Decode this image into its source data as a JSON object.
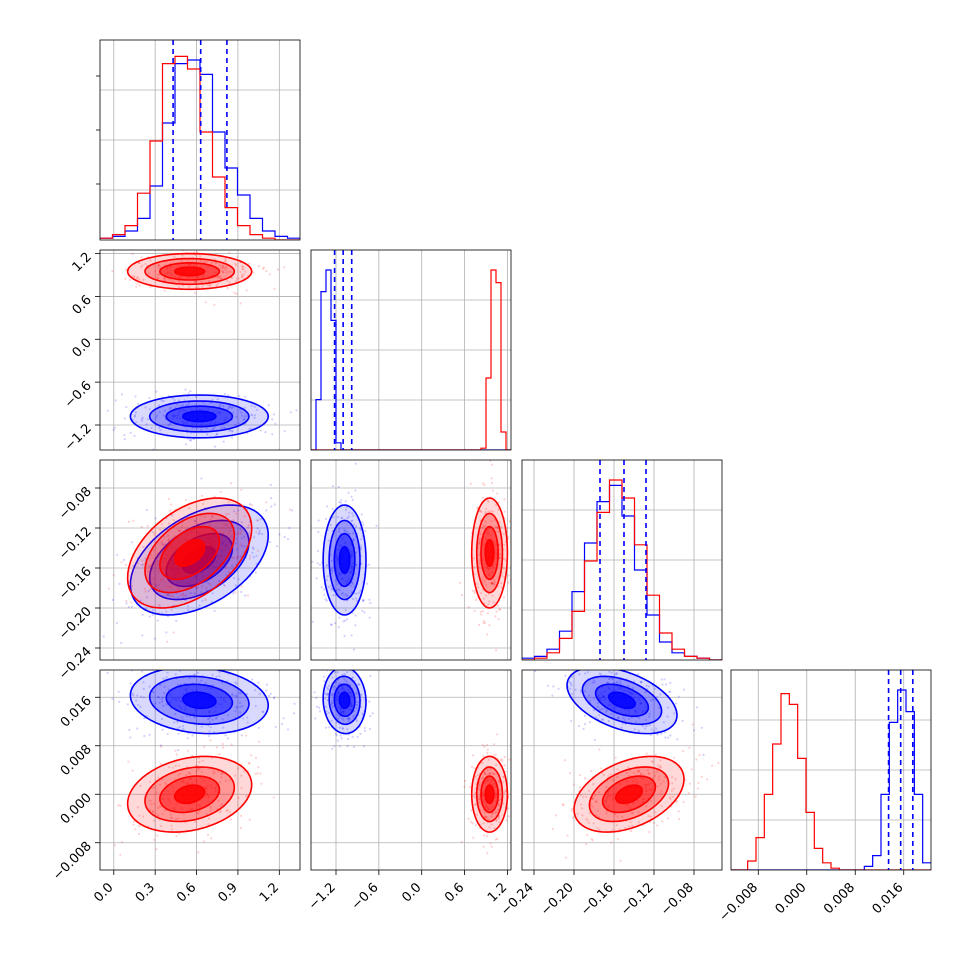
{
  "chart_data": {
    "type": "corner",
    "colors": {
      "series_a": "#0000ff",
      "series_b": "#ff0000",
      "grid": "#b0b0b0"
    },
    "grid": true,
    "params": [
      {
        "range": [
          -0.1,
          1.35
        ],
        "ticks": [
          0.0,
          0.3,
          0.6,
          0.9,
          1.2
        ],
        "tick_labels": [
          "0.0",
          "0.3",
          "0.6",
          "0.9",
          "1.2"
        ]
      },
      {
        "range": [
          -1.55,
          1.25
        ],
        "ticks": [
          -1.2,
          -0.6,
          0.0,
          0.6,
          1.2
        ],
        "tick_labels": [
          "−1.2",
          "−0.6",
          "0.0",
          "0.6",
          "1.2"
        ]
      },
      {
        "range": [
          -0.252,
          -0.052
        ],
        "ticks": [
          -0.24,
          -0.2,
          -0.16,
          -0.12,
          -0.08
        ],
        "tick_labels": [
          "−0.24",
          "−0.20",
          "−0.16",
          "−0.12",
          "−0.08"
        ]
      },
      {
        "range": [
          -0.0125,
          0.0205
        ],
        "ticks": [
          -0.008,
          0.0,
          0.008,
          0.016
        ],
        "tick_labels": [
          "−0.008",
          "0.000",
          "0.008",
          "0.016"
        ]
      }
    ],
    "series": [
      {
        "color": "#0000ff",
        "mean": [
          0.62,
          -1.08,
          -0.152,
          0.0155
        ],
        "sigma": [
          0.2,
          0.12,
          0.022,
          0.0022
        ],
        "quantiles": [
          [
            0.43,
            0.63,
            0.82
          ],
          [
            -1.22,
            -1.1,
            -0.98
          ],
          [
            -0.174,
            -0.15,
            -0.128
          ],
          [
            0.0135,
            0.0155,
            0.0175
          ]
        ]
      },
      {
        "color": "#ff0000",
        "mean": [
          0.55,
          0.95,
          -0.145,
          0.0
        ],
        "sigma": [
          0.18,
          0.1,
          0.022,
          0.0025
        ]
      }
    ],
    "histograms": [
      {
        "blue": [
          0.01,
          0.02,
          0.05,
          0.12,
          0.3,
          0.65,
          0.98,
          1.0,
          0.92,
          0.6,
          0.4,
          0.25,
          0.12,
          0.05,
          0.02,
          0.01
        ],
        "red": [
          0.01,
          0.03,
          0.08,
          0.26,
          0.55,
          0.98,
          1.02,
          0.95,
          0.6,
          0.35,
          0.18,
          0.08,
          0.03,
          0.01,
          0.0,
          0.0
        ]
      },
      {
        "blue": [
          0.0,
          0.28,
          0.88,
          1.0,
          0.72,
          0.04,
          0.0,
          0.0,
          0.0,
          0.0,
          0.0,
          0.0,
          0.0,
          0.0,
          0.0,
          0.0,
          0.0,
          0.0,
          0.0,
          0.0,
          0.0,
          0.0,
          0.0,
          0.0,
          0.0,
          0.0,
          0.0,
          0.0,
          0.0,
          0.0,
          0.0,
          0.0,
          0.0,
          0.0,
          0.0,
          0.0,
          0.0,
          0.0,
          0.0,
          0.0
        ],
        "red": [
          0.0,
          0.0,
          0.0,
          0.0,
          0.0,
          0.0,
          0.0,
          0.0,
          0.0,
          0.0,
          0.0,
          0.0,
          0.0,
          0.0,
          0.0,
          0.0,
          0.0,
          0.0,
          0.0,
          0.0,
          0.0,
          0.0,
          0.0,
          0.0,
          0.0,
          0.0,
          0.0,
          0.0,
          0.0,
          0.0,
          0.0,
          0.0,
          0.0,
          0.0,
          0.01,
          0.4,
          1.0,
          0.93,
          0.1,
          0.0
        ]
      },
      {
        "blue": [
          0.01,
          0.02,
          0.06,
          0.16,
          0.38,
          0.65,
          0.88,
          0.97,
          0.8,
          0.5,
          0.25,
          0.1,
          0.04,
          0.02,
          0.01,
          0.0
        ],
        "red": [
          0.0,
          0.01,
          0.04,
          0.12,
          0.27,
          0.55,
          0.82,
          1.0,
          0.9,
          0.64,
          0.36,
          0.15,
          0.06,
          0.02,
          0.01,
          0.0
        ]
      },
      {
        "blue": [
          0.0,
          0.0,
          0.0,
          0.0,
          0.0,
          0.0,
          0.0,
          0.0,
          0.0,
          0.0,
          0.0,
          0.0,
          0.0,
          0.0,
          0.0,
          0.0,
          0.02,
          0.08,
          0.42,
          0.82,
          1.0,
          0.88,
          0.42,
          0.04
        ],
        "red": [
          0.0,
          0.0,
          0.05,
          0.18,
          0.42,
          0.7,
          0.98,
          0.92,
          0.62,
          0.32,
          0.12,
          0.04,
          0.01,
          0.0,
          0.0,
          0.0,
          0.0,
          0.0,
          0.0,
          0.0,
          0.0,
          0.0,
          0.0,
          0.0
        ]
      }
    ],
    "correlations": {
      "blue": {
        "0-1": 0.0,
        "0-2": 0.45,
        "0-3": -0.15,
        "1-2": 0.0,
        "1-3": -0.05,
        "2-3": -0.45
      },
      "red": {
        "0-1": 0.0,
        "0-2": 0.45,
        "0-3": 0.25,
        "1-2": 0.0,
        "1-3": 0.0,
        "2-3": 0.4
      }
    }
  }
}
